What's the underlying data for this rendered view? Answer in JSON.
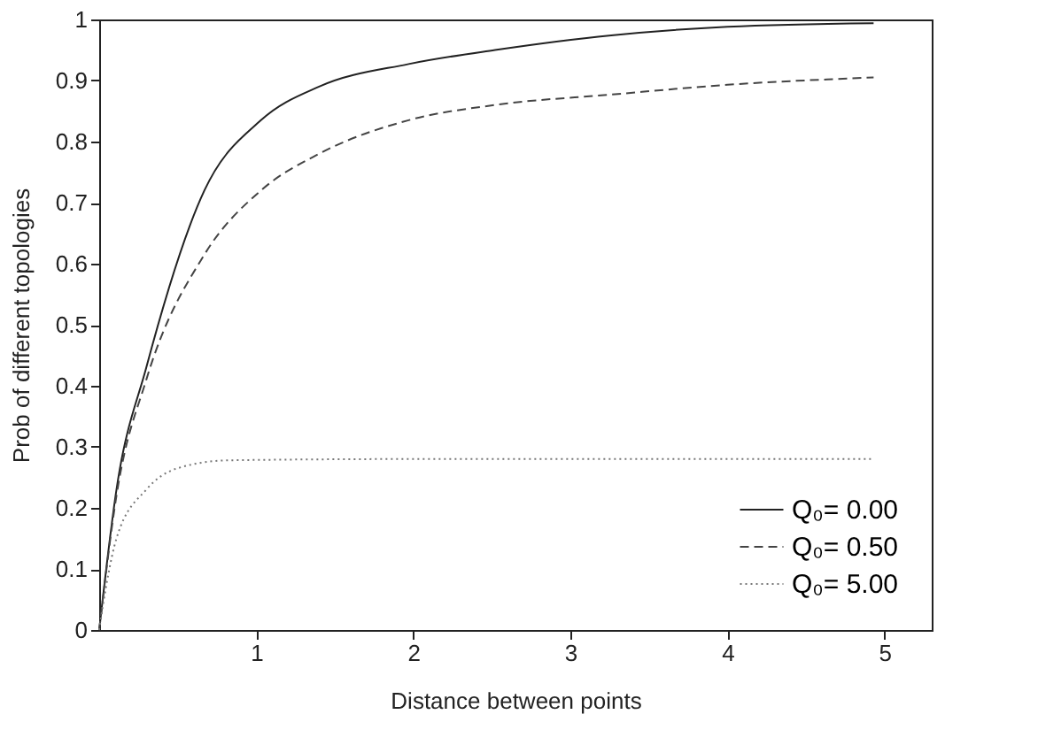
{
  "chart_data": {
    "type": "line",
    "xlabel": "Distance between points",
    "ylabel": "Prob of different topologies",
    "xlim": [
      0,
      5.3
    ],
    "xticks": [
      1,
      2,
      3,
      4,
      5
    ],
    "ylim": [
      0,
      1
    ],
    "yticks": [
      0,
      0.1,
      0.2,
      0.3,
      0.4,
      0.5,
      0.6,
      0.7,
      0.8,
      0.9,
      1
    ],
    "grid": false,
    "legend": "bottom right",
    "marker": "none",
    "series": [
      {
        "name": "Q₀= 0.00",
        "color": "#222222",
        "line_style": "solid",
        "x": [
          0,
          0.11,
          0.3,
          0.67,
          1.03,
          1.4,
          1.97,
          2.52,
          3.26,
          4.0,
          4.93
        ],
        "values": [
          0,
          0.23,
          0.43,
          0.72,
          0.835,
          0.89,
          0.927,
          0.95,
          0.974,
          0.988,
          0.994
        ]
      },
      {
        "name": "Q₀= 0.50",
        "color": "#444444",
        "line_style": "dashed",
        "x": [
          0,
          0.11,
          0.3,
          0.67,
          1.03,
          1.4,
          1.97,
          2.52,
          3.26,
          4.0,
          4.93
        ],
        "values": [
          0,
          0.22,
          0.41,
          0.615,
          0.72,
          0.78,
          0.835,
          0.86,
          0.877,
          0.893,
          0.905
        ]
      },
      {
        "name": "Q₀= 5.00",
        "color": "#777777",
        "line_style": "dotted",
        "x": [
          0,
          0.05,
          0.11,
          0.3,
          0.5,
          0.83,
          2.0,
          3.5,
          4.93
        ],
        "values": [
          0,
          0.08,
          0.15,
          0.23,
          0.265,
          0.278,
          0.28,
          0.28,
          0.28
        ]
      }
    ]
  }
}
